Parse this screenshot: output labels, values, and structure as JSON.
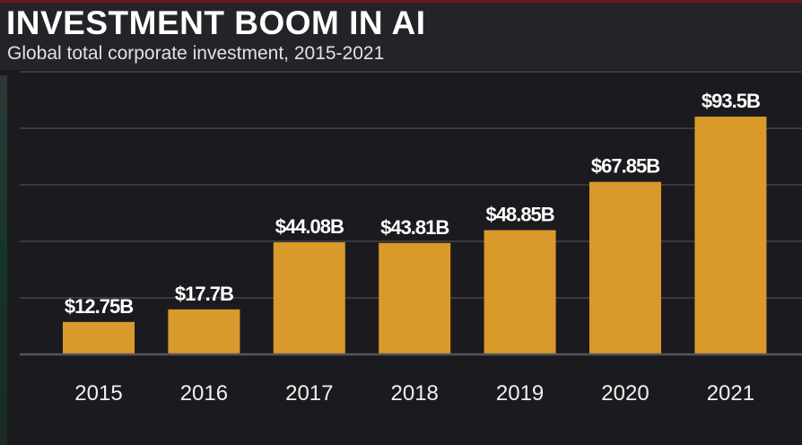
{
  "header": {
    "title": "INVESTMENT BOOM IN AI",
    "subtitle": "Global total corporate investment, 2015-2021"
  },
  "colors": {
    "bar": "#d99a2b",
    "background": "#1b1b1f",
    "grid": "#3a3a3e",
    "text": "#ffffff"
  },
  "chart_data": {
    "type": "bar",
    "title": "INVESTMENT BOOM IN AI",
    "subtitle": "Global total corporate investment, 2015-2021",
    "categories": [
      "2015",
      "2016",
      "2017",
      "2018",
      "2019",
      "2020",
      "2021"
    ],
    "values": [
      12.75,
      17.7,
      44.08,
      43.81,
      48.85,
      67.85,
      93.5
    ],
    "data_labels": [
      "$12.75B",
      "$17.7B",
      "$44.08B",
      "$43.81B",
      "$48.85B",
      "$67.85B",
      "$93.5B"
    ],
    "unit": "$B",
    "ylim": [
      0,
      110
    ],
    "grid": true,
    "legend": "none"
  }
}
